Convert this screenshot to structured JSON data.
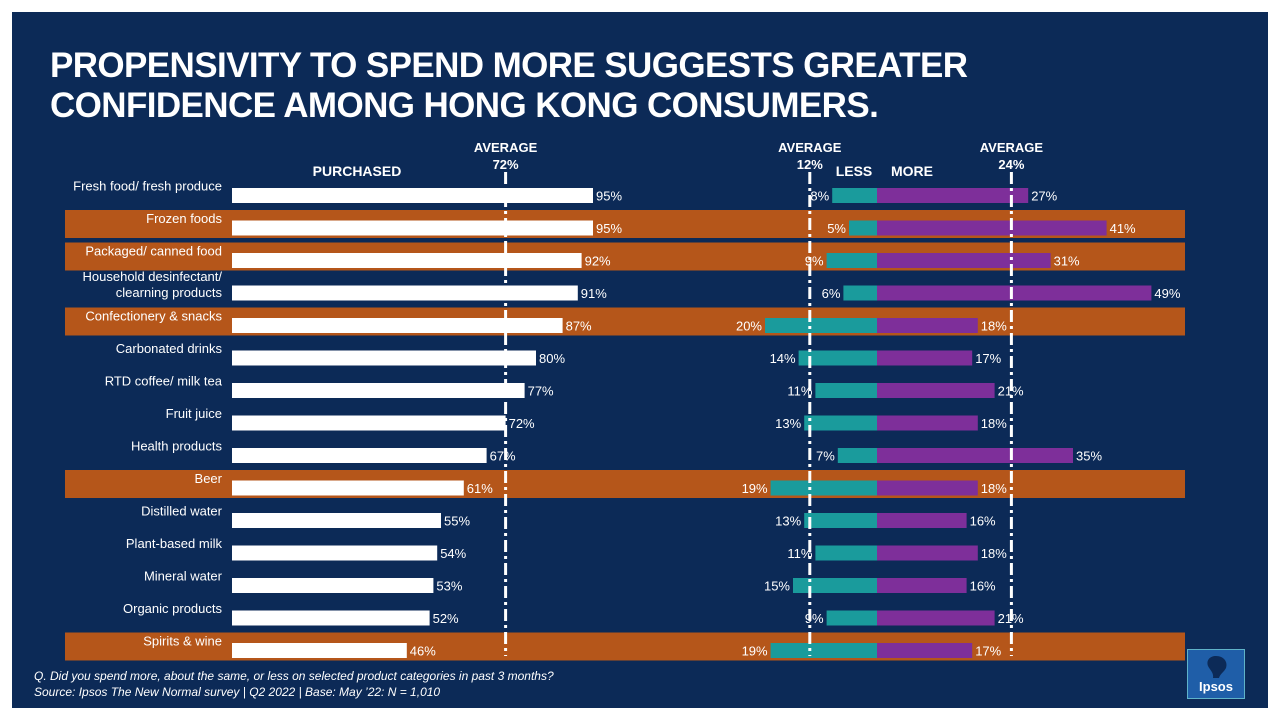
{
  "title_line1": "Propensivity to spend more suggests greater",
  "title_line2": "confidence among Hong Kong consumers.",
  "colors": {
    "background": "#0c2a57",
    "highlight": "#b5561a",
    "purchased_bar": "#ffffff",
    "less_bar": "#1a9b9c",
    "more_bar": "#7e2f9a",
    "text": "#ffffff"
  },
  "chart_data": {
    "type": "bar",
    "categories": [
      "Fresh food/ fresh produce",
      "Frozen foods",
      "Packaged/ canned food",
      "Household desinfectant/ clearning products",
      "Confectionery & snacks",
      "Carbonated drinks",
      "RTD coffee/ milk tea",
      "Fruit juice",
      "Health products",
      "Beer",
      "Distilled water",
      "Plant-based milk",
      "Mineral water",
      "Organic products",
      "Spirits & wine"
    ],
    "category_lines": [
      [
        "Fresh food/ fresh produce"
      ],
      [
        "Frozen foods"
      ],
      [
        "Packaged/ canned food"
      ],
      [
        "Household desinfectant/",
        "clearning products"
      ],
      [
        "Confectionery & snacks"
      ],
      [
        "Carbonated drinks"
      ],
      [
        "RTD coffee/ milk tea"
      ],
      [
        "Fruit juice"
      ],
      [
        "Health products"
      ],
      [
        "Beer"
      ],
      [
        "Distilled water"
      ],
      [
        "Plant-based milk"
      ],
      [
        "Mineral water"
      ],
      [
        "Organic products"
      ],
      [
        "Spirits & wine"
      ]
    ],
    "highlighted": [
      false,
      true,
      true,
      false,
      true,
      false,
      false,
      false,
      false,
      true,
      false,
      false,
      false,
      false,
      true
    ],
    "series": [
      {
        "name": "PURCHASED",
        "values": [
          95,
          95,
          92,
          91,
          87,
          80,
          77,
          72,
          67,
          61,
          55,
          54,
          53,
          52,
          46
        ]
      },
      {
        "name": "LESS",
        "values": [
          8,
          5,
          9,
          6,
          20,
          14,
          11,
          13,
          7,
          19,
          13,
          11,
          15,
          9,
          19
        ]
      },
      {
        "name": "MORE",
        "values": [
          27,
          41,
          31,
          49,
          18,
          17,
          21,
          18,
          35,
          18,
          16,
          18,
          16,
          21,
          17
        ]
      }
    ],
    "averages": [
      {
        "label_line1": "AVERAGE",
        "label_line2": "72%",
        "value": 72,
        "series": "PURCHASED"
      },
      {
        "label_line1": "AVERAGE",
        "label_line2": "12%",
        "value": 12,
        "series": "LESS"
      },
      {
        "label_line1": "AVERAGE",
        "label_line2": "24%",
        "value": 24,
        "series": "MORE"
      }
    ],
    "value_suffix": "%",
    "header_labels": {
      "purchased": "PURCHASED",
      "less": "LESS",
      "more": "MORE"
    }
  },
  "footnote": {
    "question": "Q. Did you spend more, about the same, or less on selected product categories in past 3 months?",
    "source": "Source: Ipsos The New Normal survey | Q2 2022 | Base: May ’22: N = 1,010"
  },
  "logo": {
    "text": "Ipsos"
  }
}
